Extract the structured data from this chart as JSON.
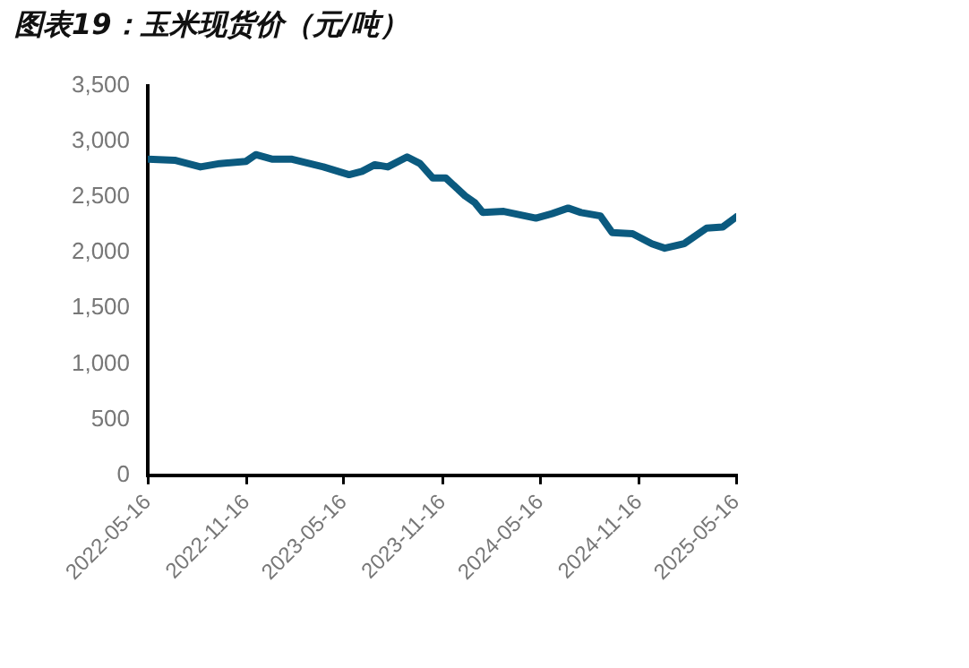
{
  "chart_data": {
    "type": "line",
    "title": "图表19：玉米现货价（元/吨）",
    "x": [
      "2022-05-16",
      "2022-07-05",
      "2022-08-22",
      "2022-09-27",
      "2022-11-15",
      "2022-12-03",
      "2023-01-02",
      "2023-02-07",
      "2023-04-08",
      "2023-05-26",
      "2023-06-19",
      "2023-07-13",
      "2023-08-06",
      "2023-09-11",
      "2023-10-05",
      "2023-10-29",
      "2023-11-22",
      "2023-12-28",
      "2024-01-15",
      "2024-01-30",
      "2024-03-09",
      "2024-05-08",
      "2024-06-07",
      "2024-07-07",
      "2024-07-31",
      "2024-09-05",
      "2024-09-27",
      "2024-11-04",
      "2024-12-10",
      "2025-01-03",
      "2025-02-08",
      "2025-03-22",
      "2025-04-21",
      "2025-05-16"
    ],
    "series": [
      {
        "color": "#0b5a7f",
        "values": [
          2840,
          2830,
          2770,
          2800,
          2820,
          2880,
          2840,
          2840,
          2770,
          2700,
          2730,
          2790,
          2770,
          2860,
          2800,
          2670,
          2670,
          2510,
          2450,
          2360,
          2370,
          2310,
          2350,
          2400,
          2360,
          2330,
          2180,
          2170,
          2080,
          2040,
          2080,
          2220,
          2230,
          2320
        ]
      }
    ],
    "xlim": [
      "2022-05-16",
      "2025-05-16"
    ],
    "xticks": [
      "2022-05-16",
      "2022-11-16",
      "2023-05-16",
      "2023-11-16",
      "2024-05-16",
      "2024-11-16",
      "2025-05-16"
    ],
    "ylim": [
      0,
      3500
    ],
    "yticks": [
      0,
      500,
      {
        "value": 1000,
        "label": "1,000"
      },
      {
        "value": 1500,
        "label": "1,500"
      },
      {
        "value": 2000,
        "label": "2,000"
      },
      {
        "value": 2500,
        "label": "2,500"
      },
      {
        "value": 3000,
        "label": "3,000"
      },
      {
        "value": 3500,
        "label": "3,500"
      }
    ],
    "grid": false,
    "legend": false,
    "marker": "none",
    "line_style": "solid"
  }
}
